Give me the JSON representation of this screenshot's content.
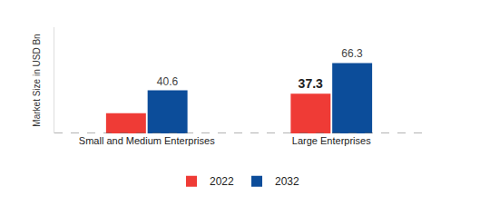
{
  "chart_data": {
    "type": "bar",
    "y_label": "Market Size in USD Bn",
    "categories": [
      "Small and Medium Enterprises",
      "Large Enterprises"
    ],
    "series": [
      {
        "name": "2022",
        "color": "#ef3b36",
        "values": [
          19.1,
          37.3
        ],
        "value_labels": [
          null,
          "37.3"
        ]
      },
      {
        "name": "2032",
        "color": "#0c4d9a",
        "values": [
          40.6,
          66.3
        ]
      }
    ],
    "ylim": [
      0,
      100
    ],
    "yticks": [],
    "grid": false,
    "legend": "bottom",
    "data_labels": true,
    "tick_labels": "x"
  }
}
